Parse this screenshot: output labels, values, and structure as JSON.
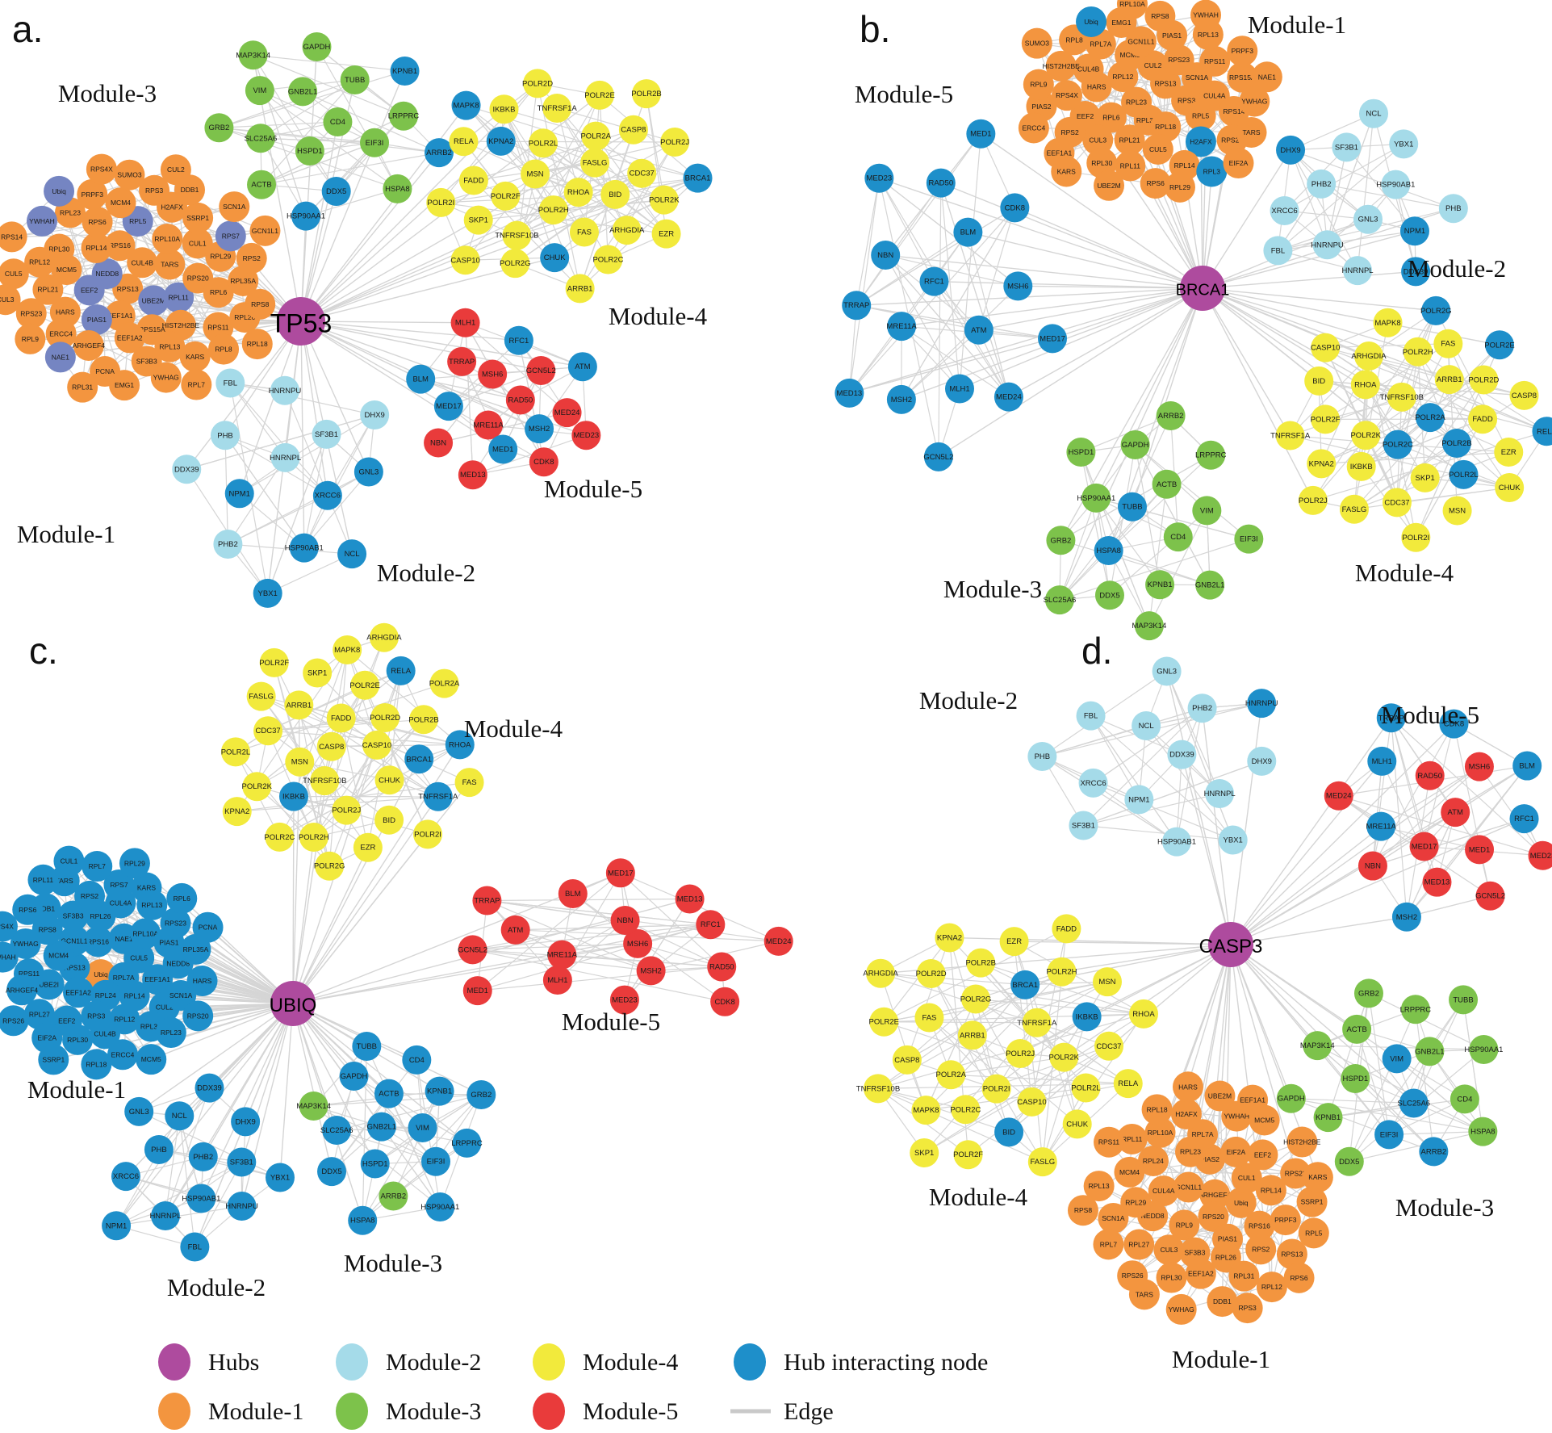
{
  "colors": {
    "hub": "#AE4B9E",
    "module1": "#F3953F",
    "module2": "#A5DBE9",
    "module3": "#7DC24B",
    "module4": "#F2EA3C",
    "module5": "#E93B3B",
    "interacting": "#1E8FCA",
    "interacting_slate": "#7585C2",
    "edge": "#D5D5D5"
  },
  "legend": {
    "items": [
      {
        "label": "Hubs",
        "color": "hub",
        "shape": "ellipse"
      },
      {
        "label": "Module-2",
        "color": "module2",
        "shape": "ellipse"
      },
      {
        "label": "Module-4",
        "color": "module4",
        "shape": "ellipse"
      },
      {
        "label": "Hub interacting node",
        "color": "interacting",
        "shape": "ellipse"
      },
      {
        "label": "Module-1",
        "color": "module1",
        "shape": "ellipse"
      },
      {
        "label": "Module-3",
        "color": "module3",
        "shape": "ellipse"
      },
      {
        "label": "Module-5",
        "color": "module5",
        "shape": "ellipse"
      },
      {
        "label": "Edge",
        "color": "edge",
        "shape": "line"
      }
    ]
  },
  "panels": [
    {
      "id": "a",
      "letter": "a.",
      "hub_label": "TP53",
      "modules": [
        {
          "name": "Module-1",
          "label": "Module-1",
          "color": "module1",
          "nodes": [
            "RPS13",
            "CUL4B",
            "UBE2M",
            "NEDD8",
            "TARS",
            "EEF1A1",
            "RPS16",
            "RPL11",
            "EEF2",
            "RPL10A",
            "RPS15A",
            "RPL14",
            "RPS20",
            "PIAS1",
            "RPL5",
            "HIST2H2BE",
            "MCM5",
            "CUL1",
            "EEF1A2",
            "RPS6",
            "RPL6",
            "HARS",
            "H2AFX",
            "RPL13",
            "RPL30",
            "RPL29",
            "ARHGEF4",
            "MCM4",
            "RPS11",
            "RPL21",
            "SSRP1",
            "SF3B3",
            "RPL23",
            "RPL35A",
            "ERCC4",
            "RPS3",
            "KARS",
            "RPL12",
            "RPS7",
            "PCNA",
            "PRPF3",
            "RPL26",
            "RPS23",
            "DDB1",
            "YWHAG",
            "YWHAH",
            "RPS2",
            "NAE1",
            "SUMO3",
            "RPL8",
            "CUL5",
            "SCN1A",
            "EMG1",
            "Ubiq",
            "RPS8",
            "RPL9",
            "CUL2",
            "RPL7",
            "RPS14",
            "GCN1L1",
            "RPL31",
            "RPS4X",
            "RPL18",
            "CUL3"
          ],
          "alt": {
            "RPL11": "interacting_slate",
            "RPL5": "interacting_slate",
            "EEF2": "interacting_slate",
            "UBE2M": "interacting_slate",
            "NEDD8": "interacting_slate",
            "PIAS1": "interacting_slate",
            "RPS7": "interacting_slate",
            "NAE1": "interacting_slate",
            "Ubiq": "interacting_slate",
            "YWHAH": "interacting_slate"
          }
        },
        {
          "name": "Module-3",
          "label": "Module-3",
          "color": "module3",
          "nodes": [
            "CD4",
            "HSPD1",
            "GNB2L1",
            "EIF3I",
            "SLC25A6",
            "TUBB",
            "DDX5",
            "VIM",
            "LRPPRC",
            "ACTB",
            "GAPDH",
            "HSPA8",
            "GRB2",
            "KPNB1",
            "HSP90AA1",
            "MAP3K14",
            "ARRB2"
          ],
          "alt": {
            "DDX5": "interacting",
            "KPNB1": "interacting",
            "HSP90AA1": "interacting",
            "ARRB2": "interacting"
          }
        },
        {
          "name": "Module-4",
          "label": "Module-4",
          "color": "module4",
          "nodes": [
            "RHOA",
            "MSN",
            "FASLG",
            "POLR2H",
            "POLR2L",
            "BID",
            "POLR2F",
            "POLR2A",
            "FAS",
            "KPNA2",
            "CDC37",
            "TNFRSF10B",
            "TNFRSF1A",
            "ARHGDIA",
            "FADD",
            "CASP8",
            "CHUK",
            "IKBKB",
            "POLR2K",
            "SKP1",
            "POLR2E",
            "POLR2C",
            "RELA",
            "POLR2J",
            "POLR2G",
            "POLR2D",
            "EZR",
            "POLR2I",
            "POLR2B",
            "ARRB1",
            "MAPK8",
            "BRCA1",
            "CASP10"
          ],
          "alt": {
            "KPNA2": "interacting",
            "CHUK": "interacting",
            "MAPK8": "interacting",
            "BRCA1": "interacting"
          }
        },
        {
          "name": "Module-2",
          "label": "Module-2",
          "color": "module2",
          "nodes": [
            "HNRNPL",
            "XRCC6",
            "NPM1",
            "SF3B1",
            "HSP90AB1",
            "PHB",
            "GNL3",
            "PHB2",
            "HNRNPU",
            "NCL",
            "DDX39",
            "DHX9",
            "YBX1",
            "FBL"
          ],
          "alt": {
            "XRCC6": "interacting",
            "NPM1": "interacting",
            "HSP90AB1": "interacting",
            "GNL3": "interacting",
            "NCL": "interacting",
            "YBX1": "interacting"
          }
        },
        {
          "name": "Module-5",
          "label": "Module-5",
          "color": "module5",
          "nodes": [
            "RAD50",
            "MRE11A",
            "MSH6",
            "MSH2",
            "MED17",
            "GCN5L2",
            "MED1",
            "TRRAP",
            "MED24",
            "NBN",
            "RFC1",
            "CDK8",
            "BLM",
            "ATM",
            "MED13",
            "MLH1",
            "MED23"
          ],
          "alt": {
            "MSH2": "interacting",
            "MED17": "interacting",
            "MED1": "interacting",
            "RFC1": "interacting",
            "BLM": "interacting",
            "ATM": "interacting"
          }
        }
      ]
    },
    {
      "id": "b",
      "letter": "b.",
      "hub_label": "BRCA1",
      "modules": [
        {
          "name": "Module-5",
          "label": "Module-5",
          "color": "interacting",
          "nodes": [
            "RFC1",
            "ATM",
            "MRE11A",
            "BLM",
            "MLH1",
            "NBN",
            "MSH6",
            "MSH2",
            "RAD50",
            "MED24",
            "TRRAP",
            "CDK8",
            "GCN5L2",
            "MED23",
            "MED17",
            "MED13",
            "MED1"
          ],
          "alt": {}
        },
        {
          "name": "Module-1",
          "label": "Module-1",
          "color": "module1",
          "nodes": [
            "RPL23",
            "RPS13",
            "RPL35A",
            "RPL12",
            "RPS3",
            "RPL6",
            "CUL2",
            "RPL18",
            "HARS",
            "SCN1A",
            "RPL21",
            "MCM5",
            "RPL5",
            "EEF2",
            "RPS23",
            "CUL5",
            "CUL4B",
            "CUL4A",
            "CUL3",
            "GCN1L1",
            "H2AFX",
            "RPS4X",
            "RPS11",
            "RPL11",
            "RPL7A",
            "RPS14",
            "RPS2",
            "PIAS1",
            "RPL14",
            "HIST2H2BE",
            "RPS15A",
            "RPL30",
            "EMG1",
            "RPS26",
            "PIAS2",
            "RPL13",
            "RPS6",
            "RPL8",
            "YWHAG",
            "EEF1A1",
            "RPS8",
            "RPL3",
            "RPL9",
            "PRPF3",
            "UBE2M",
            "Ubiq",
            "TARS",
            "ERCC4",
            "YWHAH",
            "RPL29",
            "SUMO3",
            "NAE1",
            "KARS",
            "RPL10A",
            "EIF2A"
          ],
          "alt": {
            "H2AFX": "interacting",
            "Ubiq": "interacting",
            "RPL3": "interacting"
          }
        },
        {
          "name": "Module-2",
          "label": "Module-2",
          "color": "module2",
          "nodes": [
            "GNL3",
            "PHB2",
            "HSP90AB1",
            "HNRNPU",
            "SF3B1",
            "NPM1",
            "XRCC6",
            "YBX1",
            "HNRNPL",
            "DHX9",
            "PHB",
            "FBL",
            "NCL",
            "DDX39"
          ],
          "alt": {
            "NPM1": "interacting",
            "DHX9": "interacting",
            "DDX39": "interacting"
          }
        },
        {
          "name": "Module-3",
          "label": "Module-3",
          "color": "module3",
          "nodes": [
            "TUBB",
            "CD4",
            "HSPA8",
            "ACTB",
            "KPNB1",
            "HSP90AA1",
            "VIM",
            "DDX5",
            "GAPDH",
            "GNB2L1",
            "GRB2",
            "LRPPRC",
            "MAP3K14",
            "HSPD1",
            "EIF3I",
            "SLC25A6",
            "ARRB2"
          ],
          "alt": {
            "TUBB": "interacting",
            "HSPA8": "interacting"
          }
        },
        {
          "name": "Module-4",
          "label": "Module-4",
          "color": "module4",
          "nodes": [
            "POLR2A",
            "POLR2C",
            "TNFRSF10B",
            "POLR2B",
            "POLR2K",
            "ARRB1",
            "SKP1",
            "RHOA",
            "FADD",
            "IKBKB",
            "POLR2H",
            "POLR2L",
            "POLR2F",
            "POLR2D",
            "CDC37",
            "ARHGDIA",
            "EZR",
            "KPNA2",
            "FAS",
            "MSN",
            "BID",
            "CASP8",
            "FASLG",
            "MAPK8",
            "CHUK",
            "TNFRSF1A",
            "POLR2E",
            "POLR2I",
            "CASP10",
            "RELA",
            "POLR2J",
            "POLR2G"
          ],
          "alt": {
            "POLR2A": "interacting",
            "POLR2B": "interacting",
            "POLR2C": "interacting",
            "POLR2L": "interacting",
            "POLR2E": "interacting",
            "POLR2G": "interacting",
            "RELA": "interacting"
          }
        }
      ]
    },
    {
      "id": "c",
      "letter": "c.",
      "hub_label": "UBIQ",
      "modules": [
        {
          "name": "Module-4",
          "label": "Module-4",
          "color": "module4",
          "nodes": [
            "CASP8",
            "CASP10",
            "TNFRSF10B",
            "FADD",
            "CHUK",
            "MSN",
            "POLR2D",
            "POLR2J",
            "ARRB1",
            "BRCA1",
            "IKBKB",
            "POLR2E",
            "BID",
            "CDC37",
            "POLR2B",
            "POLR2H",
            "SKP1",
            "TNFRSF1A",
            "POLR2K",
            "RELA",
            "EZR",
            "FASLG",
            "RHOA",
            "POLR2C",
            "MAPK8",
            "POLR2I",
            "POLR2L",
            "POLR2A",
            "POLR2G",
            "POLR2F",
            "FAS",
            "KPNA2",
            "ARHGDIA"
          ],
          "alt": {
            "BRCA1": "interacting",
            "IKBKB": "interacting",
            "TNFRSF1A": "interacting",
            "RELA": "interacting",
            "RHOA": "interacting"
          }
        },
        {
          "name": "Module-5",
          "label": "Module-5",
          "color": "module5",
          "nodes": [
            "MSH6",
            "MRE11A",
            "NBN",
            "MSH2",
            "ATM",
            "RFC1",
            "MLH1",
            "BLM",
            "RAD50",
            "GCN5L2",
            "MED13",
            "MED23",
            "TRRAP",
            "MED24",
            "MED1",
            "MED17",
            "CDK8"
          ],
          "alt": {}
        },
        {
          "name": "Module-1",
          "label": "Module-1",
          "color": "interacting",
          "nodes": [
            "Ubiq",
            "RPS16",
            "RPL7A",
            "RPS13",
            "NAE1",
            "RPL24",
            "GCN1L1",
            "CUL5",
            "EEF1A2",
            "RPL26",
            "RPL14",
            "MCM4",
            "RPL10A",
            "RPS3",
            "SF3B3",
            "EEF1A1",
            "UBE2I",
            "CUL4A",
            "RPL12",
            "RPS8",
            "PIAS1",
            "EEF2",
            "RPS2",
            "CUL2",
            "RPS11",
            "RPL13",
            "CUL4B",
            "DDB1",
            "NEDD8",
            "RPL27",
            "RPS7",
            "RPL31",
            "YWHAG",
            "RPS23",
            "RPL30",
            "TARS",
            "SCN1A",
            "ARHGEF4",
            "KARS",
            "ERCC4",
            "RPS6",
            "RPL35A",
            "EIF2A",
            "RPL7",
            "RPL23",
            "YWHAH",
            "RPL6",
            "RPL18",
            "RPL11",
            "HARS",
            "RPS26",
            "RPL29",
            "MCM5",
            "RPS4X",
            "PCNA",
            "SSRP1",
            "CUL1",
            "RPS20"
          ],
          "alt": {
            "Ubiq": "module1"
          }
        },
        {
          "name": "Module-2",
          "label": "Module-2",
          "color": "interacting",
          "nodes": [
            "PHB2",
            "HSP90AB1",
            "PHB",
            "SF3B1",
            "HNRNPL",
            "NCL",
            "HNRNPU",
            "XRCC6",
            "DHX9",
            "FBL",
            "GNL3",
            "YBX1",
            "NPM1",
            "DDX39"
          ],
          "alt": {}
        },
        {
          "name": "Module-3",
          "label": "Module-3",
          "color": "interacting",
          "nodes": [
            "GNB2L1",
            "VIM",
            "HSPD1",
            "ACTB",
            "EIF3I",
            "SLC25A6",
            "KPNB1",
            "ARRB2",
            "GAPDH",
            "LRPPRC",
            "DDX5",
            "CD4",
            "HSP90AA1",
            "MAP3K14",
            "GRB2",
            "HSPA8",
            "TUBB"
          ],
          "alt": {
            "ARRB2": "module3",
            "MAP3K14": "module3"
          }
        }
      ]
    },
    {
      "id": "d",
      "letter": "d.",
      "hub_label": "CASP3",
      "modules": [
        {
          "name": "Module-2",
          "label": "Module-2",
          "color": "module2",
          "nodes": [
            "DDX39",
            "NPM1",
            "NCL",
            "HNRNPL",
            "XRCC6",
            "PHB2",
            "HSP90AB1",
            "FBL",
            "DHX9",
            "SF3B1",
            "GNL3",
            "YBX1",
            "PHB",
            "HNRNPU"
          ],
          "alt": {
            "HNRNPU": "interacting"
          }
        },
        {
          "name": "Module-5",
          "label": "Module-5",
          "color": "module5",
          "nodes": [
            "ATM",
            "MED17",
            "RAD50",
            "MED1",
            "MRE11A",
            "MSH6",
            "MED13",
            "MLH1",
            "RFC1",
            "NBN",
            "CDK8",
            "GCN5L2",
            "MED24",
            "BLM",
            "MSH2",
            "TRRAP",
            "MED23"
          ],
          "alt": {
            "MRE11A": "interacting",
            "MLH1": "interacting",
            "RFC1": "interacting",
            "BLM": "interacting",
            "CDK8": "interacting",
            "MSH2": "interacting",
            "TRRAP": "interacting"
          }
        },
        {
          "name": "Module-4",
          "label": "Module-4",
          "color": "module4",
          "nodes": [
            "POLR2J",
            "ARRB1",
            "TNFRSF1A",
            "POLR2I",
            "POLR2G",
            "POLR2K",
            "POLR2A",
            "BRCA1",
            "CASP10",
            "FAS",
            "IKBKB",
            "POLR2C",
            "POLR2B",
            "POLR2L",
            "CASP8",
            "POLR2H",
            "BID",
            "POLR2D",
            "CDC37",
            "MAPK8",
            "EZR",
            "CHUK",
            "POLR2E",
            "MSN",
            "POLR2F",
            "KPNA2",
            "RELA",
            "TNFRSF10B",
            "FADD",
            "FASLG",
            "ARHGDIA",
            "RHOA",
            "SKP1"
          ],
          "alt": {
            "BRCA1": "interacting",
            "IKBKB": "interacting",
            "BID": "interacting"
          }
        },
        {
          "name": "Module-3",
          "label": "Module-3",
          "color": "module3",
          "nodes": [
            "VIM",
            "SLC25A6",
            "HSPD1",
            "GNB2L1",
            "EIF3I",
            "ACTB",
            "CD4",
            "KPNB1",
            "LRPPRC",
            "ARRB2",
            "MAP3K14",
            "HSP90AA1",
            "DDX5",
            "GRB2",
            "HSPA8",
            "GAPDH",
            "TUBB"
          ],
          "alt": {
            "VIM": "interacting",
            "SLC25A6": "interacting",
            "EIF3I": "interacting",
            "ARRB2": "interacting"
          }
        },
        {
          "name": "Module-1",
          "label": "Module-1",
          "color": "module1",
          "nodes": [
            "ARHGEF4",
            "RPS20",
            "GCN1L1",
            "Ubiq",
            "RPL9",
            "PIAS2",
            "PIAS1",
            "CUL4A",
            "CUL1",
            "SF3B3",
            "RPL23",
            "RPS16",
            "NEDD8",
            "EIF2A",
            "RPL26",
            "RPL24",
            "RPL14",
            "CUL3",
            "RPL7A",
            "RPS2",
            "RPL29",
            "EEF2",
            "EEF1A2",
            "RPL10A",
            "PRPF3",
            "RPL27",
            "YWHAH",
            "RPL31",
            "MCM4",
            "RPS23",
            "RPL30",
            "H2AFX",
            "RPS13",
            "SCN1A",
            "MCM5",
            "DDB1",
            "RPL11",
            "SSRP1",
            "RPS26",
            "UBE2M",
            "RPL12",
            "RPL13",
            "HIST2H2BE",
            "YWHAG",
            "RPL18",
            "RPL5",
            "RPL7",
            "EEF1A1",
            "RPS3",
            "RPS11",
            "KARS",
            "TARS",
            "HARS",
            "RPS6",
            "RPS8"
          ],
          "alt": {}
        }
      ]
    }
  ]
}
